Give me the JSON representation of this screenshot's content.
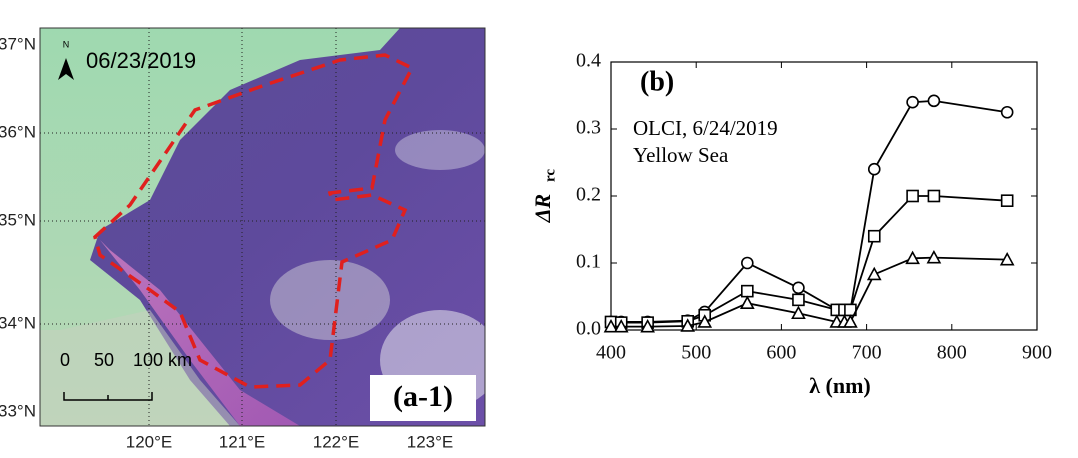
{
  "map": {
    "date": "06/23/2019",
    "north": "N",
    "panel_label": "(a-1)",
    "scale_labels": [
      "0",
      "50",
      "100 km"
    ],
    "lat_labels": [
      "37°N",
      "36°N",
      "35°N",
      "34°N",
      "33°N"
    ],
    "lon_labels": [
      "120°E",
      "121°E",
      "122°E",
      "123°E"
    ]
  },
  "chart_data": {
    "type": "line",
    "panel_label": "(b)",
    "annotations": [
      "OLCI, 6/24/2019",
      "Yellow Sea"
    ],
    "ylabel_main": "ΔR",
    "ylabel_sub": "rc",
    "xlabel": "λ (nm)",
    "x": [
      400,
      412,
      443,
      490,
      510,
      560,
      620,
      665,
      674,
      681,
      709,
      754,
      779,
      865
    ],
    "series": [
      {
        "marker": "circle",
        "color": "#000000",
        "values": [
          0.012,
          0.012,
          0.012,
          0.014,
          0.027,
          0.1,
          0.063,
          0.03,
          0.03,
          0.03,
          0.24,
          0.34,
          0.342,
          0.325
        ]
      },
      {
        "marker": "square",
        "color": "#000000",
        "values": [
          0.012,
          0.011,
          0.011,
          0.013,
          0.022,
          0.058,
          0.045,
          0.03,
          0.03,
          0.03,
          0.14,
          0.2,
          0.2,
          0.193
        ]
      },
      {
        "marker": "triangle",
        "color": "#000000",
        "values": [
          0.005,
          0.005,
          0.005,
          0.006,
          0.012,
          0.04,
          0.025,
          0.012,
          0.012,
          0.012,
          0.083,
          0.107,
          0.108,
          0.105
        ]
      }
    ],
    "xlim": [
      400,
      900
    ],
    "xticks": [
      400,
      500,
      600,
      700,
      800,
      900
    ],
    "ylim": [
      0,
      0.4
    ],
    "yticks": [
      {
        "value": 0,
        "label": "0.0"
      },
      0.1,
      0.2,
      0.3,
      0.4
    ]
  }
}
